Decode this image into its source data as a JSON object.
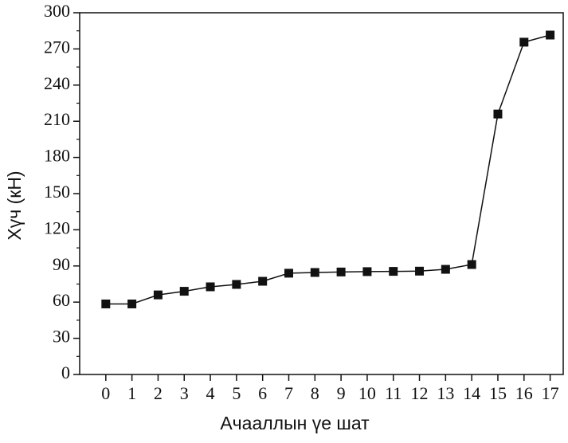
{
  "chart_data": {
    "type": "line",
    "x_label": "Ачааллын үе шат",
    "y_label": "Хүч (кН)",
    "x": [
      0,
      1,
      2,
      3,
      4,
      5,
      6,
      7,
      8,
      9,
      10,
      11,
      12,
      13,
      14,
      15,
      16,
      17
    ],
    "series": [
      {
        "color": "#111111",
        "values": [
          58.5,
          58.5,
          66,
          69,
          72.7,
          74.7,
          77.3,
          84,
          84.6,
          85,
          85.3,
          85.5,
          85.7,
          87.2,
          91.2,
          216,
          275.6,
          281.5
        ]
      }
    ],
    "xlim": [
      -1,
      17.5
    ],
    "xticks": [
      0,
      1,
      2,
      3,
      4,
      5,
      6,
      7,
      8,
      9,
      10,
      11,
      12,
      13,
      14,
      15,
      16,
      17
    ],
    "ylim": [
      0,
      300
    ],
    "yticks": [
      0,
      30,
      60,
      90,
      120,
      150,
      180,
      210,
      240,
      270,
      300
    ]
  }
}
